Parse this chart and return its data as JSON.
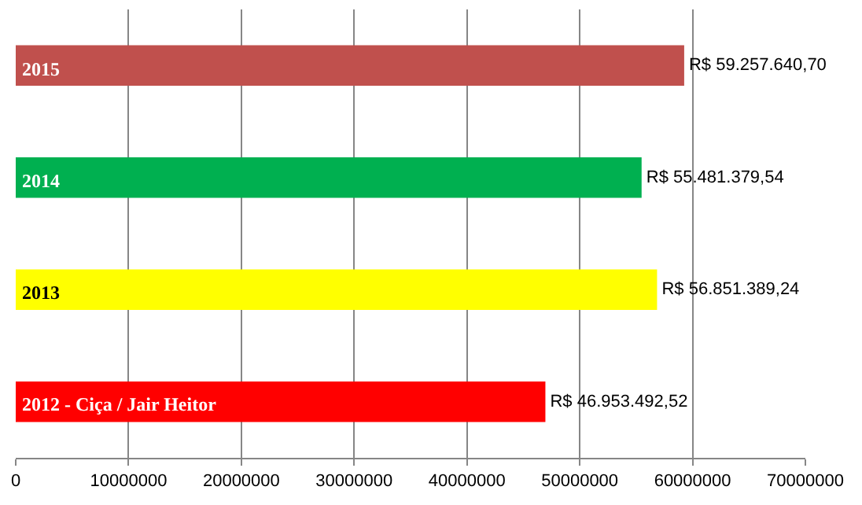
{
  "chart_data": {
    "type": "bar",
    "orientation": "horizontal",
    "categories": [
      "2015",
      "2014",
      "2013",
      "2012 - Ciça / Jair Heitor"
    ],
    "values": [
      59257640.7,
      55481379.54,
      56851389.24,
      46953492.52
    ],
    "colors": [
      "#c0504d",
      "#00b050",
      "#ffff00",
      "#ff0000"
    ],
    "value_labels": [
      "R$ 59.257.640,70",
      "R$ 55.481.379,54",
      "R$ 56.851.389,24",
      "R$ 46.953.492,52"
    ],
    "xlim": [
      0,
      70000000
    ],
    "xticks": [
      0,
      10000000,
      20000000,
      30000000,
      40000000,
      50000000,
      60000000,
      70000000
    ],
    "grid": "x",
    "tick_labels": "x",
    "legend": false
  }
}
